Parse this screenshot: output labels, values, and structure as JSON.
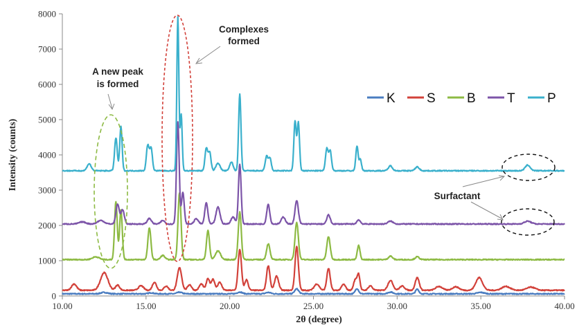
{
  "chart_data": {
    "type": "line",
    "xlabel": "2θ (degree)",
    "ylabel": "Intensity (counts)",
    "xlim": [
      10,
      40
    ],
    "ylim": [
      0,
      8000
    ],
    "x_ticks": [
      "10.00",
      "15.00",
      "20.00",
      "25.00",
      "30.00",
      "35.00",
      "40.00"
    ],
    "y_ticks": [
      "0",
      "1000",
      "2000",
      "3000",
      "4000",
      "5000",
      "6000",
      "7000",
      "8000"
    ],
    "grid": false,
    "legend_position": "upper-right",
    "series": [
      {
        "name": "K",
        "color": "#4a7cc0",
        "baseline": 60,
        "peaks": [
          [
            12.5,
            40,
            0.2
          ],
          [
            15.3,
            30,
            0.15
          ],
          [
            17.0,
            45,
            0.15
          ],
          [
            20.6,
            50,
            0.15
          ],
          [
            22.3,
            40,
            0.15
          ],
          [
            24.0,
            140,
            0.12
          ],
          [
            27.6,
            150,
            0.1
          ],
          [
            29.6,
            50,
            0.15
          ],
          [
            31.2,
            130,
            0.1
          ],
          [
            35.0,
            40,
            0.2
          ]
        ]
      },
      {
        "name": "S",
        "color": "#d2413a",
        "baseline": 160,
        "peaks": [
          [
            10.7,
            180,
            0.15
          ],
          [
            12.5,
            500,
            0.22
          ],
          [
            13.3,
            150,
            0.12
          ],
          [
            14.7,
            130,
            0.15
          ],
          [
            15.5,
            230,
            0.12
          ],
          [
            16.2,
            120,
            0.12
          ],
          [
            17.0,
            640,
            0.13
          ],
          [
            17.6,
            160,
            0.12
          ],
          [
            18.3,
            180,
            0.12
          ],
          [
            18.7,
            330,
            0.1
          ],
          [
            19.0,
            320,
            0.1
          ],
          [
            19.4,
            230,
            0.12
          ],
          [
            20.6,
            1160,
            0.1
          ],
          [
            21.0,
            300,
            0.1
          ],
          [
            22.3,
            700,
            0.1
          ],
          [
            22.8,
            400,
            0.12
          ],
          [
            24.0,
            1240,
            0.1
          ],
          [
            25.2,
            180,
            0.15
          ],
          [
            25.9,
            620,
            0.1
          ],
          [
            26.8,
            170,
            0.12
          ],
          [
            27.5,
            300,
            0.1
          ],
          [
            27.7,
            440,
            0.08
          ],
          [
            28.4,
            130,
            0.12
          ],
          [
            29.6,
            280,
            0.15
          ],
          [
            30.3,
            120,
            0.15
          ],
          [
            31.2,
            360,
            0.12
          ],
          [
            32.5,
            110,
            0.2
          ],
          [
            33.5,
            100,
            0.2
          ],
          [
            34.9,
            360,
            0.2
          ],
          [
            36.5,
            110,
            0.25
          ],
          [
            38.0,
            90,
            0.25
          ]
        ]
      },
      {
        "name": "B",
        "color": "#8dba43",
        "baseline": 1030,
        "peaks": [
          [
            12.0,
            80,
            0.2
          ],
          [
            13.2,
            1650,
            0.08
          ],
          [
            13.5,
            1420,
            0.08
          ],
          [
            15.2,
            900,
            0.09
          ],
          [
            16.0,
            120,
            0.12
          ],
          [
            17.0,
            1900,
            0.09
          ],
          [
            18.7,
            820,
            0.09
          ],
          [
            19.3,
            250,
            0.15
          ],
          [
            20.6,
            1350,
            0.09
          ],
          [
            22.3,
            450,
            0.1
          ],
          [
            24.0,
            1050,
            0.1
          ],
          [
            25.9,
            650,
            0.1
          ],
          [
            27.7,
            400,
            0.08
          ],
          [
            29.6,
            100,
            0.12
          ],
          [
            31.2,
            80,
            0.12
          ]
        ]
      },
      {
        "name": "T",
        "color": "#7c54a8",
        "baseline": 2040,
        "peaks": [
          [
            11.2,
            60,
            0.2
          ],
          [
            12.3,
            100,
            0.2
          ],
          [
            13.3,
            560,
            0.1
          ],
          [
            13.6,
            400,
            0.1
          ],
          [
            15.2,
            160,
            0.12
          ],
          [
            16.0,
            100,
            0.12
          ],
          [
            16.9,
            2900,
            0.08
          ],
          [
            17.2,
            900,
            0.08
          ],
          [
            18.0,
            150,
            0.12
          ],
          [
            18.6,
            600,
            0.09
          ],
          [
            19.3,
            480,
            0.12
          ],
          [
            20.2,
            200,
            0.12
          ],
          [
            20.6,
            1700,
            0.08
          ],
          [
            22.3,
            560,
            0.09
          ],
          [
            23.2,
            200,
            0.12
          ],
          [
            24.0,
            660,
            0.1
          ],
          [
            25.9,
            260,
            0.1
          ],
          [
            27.7,
            120,
            0.1
          ],
          [
            29.6,
            80,
            0.15
          ],
          [
            37.8,
            80,
            0.2
          ]
        ]
      },
      {
        "name": "P",
        "color": "#3ab0cc",
        "baseline": 3550,
        "peaks": [
          [
            11.6,
            200,
            0.12
          ],
          [
            13.2,
            930,
            0.08
          ],
          [
            13.5,
            1250,
            0.07
          ],
          [
            15.1,
            720,
            0.08
          ],
          [
            15.3,
            640,
            0.08
          ],
          [
            16.9,
            4350,
            0.06
          ],
          [
            17.1,
            1600,
            0.06
          ],
          [
            18.6,
            640,
            0.08
          ],
          [
            18.8,
            520,
            0.08
          ],
          [
            19.3,
            220,
            0.12
          ],
          [
            20.1,
            250,
            0.1
          ],
          [
            20.6,
            2170,
            0.07
          ],
          [
            22.2,
            410,
            0.08
          ],
          [
            22.4,
            360,
            0.08
          ],
          [
            23.9,
            1400,
            0.07
          ],
          [
            24.1,
            1360,
            0.07
          ],
          [
            25.8,
            620,
            0.08
          ],
          [
            26.0,
            560,
            0.08
          ],
          [
            27.6,
            700,
            0.07
          ],
          [
            27.8,
            320,
            0.07
          ],
          [
            29.6,
            140,
            0.12
          ],
          [
            31.2,
            110,
            0.12
          ],
          [
            37.8,
            160,
            0.15
          ]
        ]
      }
    ],
    "annotations": {
      "new_peak": [
        "A new peak",
        "is formed"
      ],
      "complexes": [
        "Complexes",
        "formed"
      ],
      "surfactant": "Surfactant"
    }
  }
}
